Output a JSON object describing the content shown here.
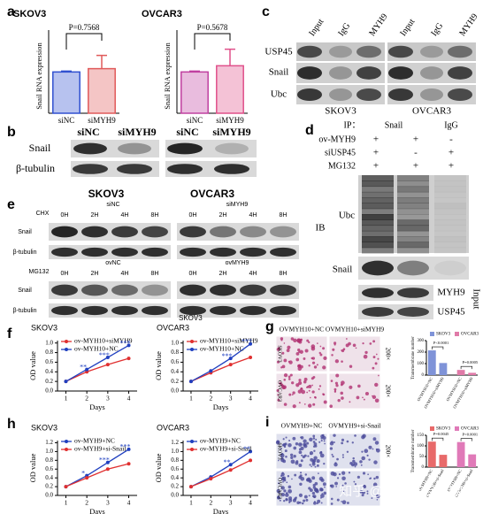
{
  "panels": [
    "a",
    "b",
    "c",
    "d",
    "e",
    "f",
    "g",
    "h",
    "i"
  ],
  "chart_data": [
    {
      "type": "bar",
      "title": "SKOV3",
      "ylabel": "Snail RNA expression",
      "categories": [
        "siNC",
        "siMYH9"
      ],
      "values": [
        1.0,
        1.08
      ],
      "errors": [
        0.02,
        0.32
      ],
      "colors": [
        "#3050d0",
        "#e05a5a"
      ],
      "annotation": "P=0.7568",
      "ylim": [
        0,
        1.8
      ]
    },
    {
      "type": "bar",
      "title": "OVCAR3",
      "ylabel": "Snail RNA expression",
      "categories": [
        "siNC",
        "siMYH9"
      ],
      "values": [
        1.0,
        1.15
      ],
      "errors": [
        0.02,
        0.4
      ],
      "colors": [
        "#c040a0",
        "#e0508a"
      ],
      "annotation": "P=0.5678",
      "ylim": [
        0,
        1.8
      ]
    },
    {
      "type": "line",
      "title": "SKOV3",
      "xlabel": "Days",
      "ylabel": "OD value",
      "x": [
        1,
        2,
        3,
        4
      ],
      "xlim": [
        0.6,
        4.4
      ],
      "xticks": [
        1,
        2,
        3,
        4
      ],
      "ylim": [
        0,
        1.05
      ],
      "yticks": [
        {
          "value": 0,
          "label": "0.0"
        },
        0.2,
        0.4,
        0.6,
        0.8,
        {
          "value": 1,
          "label": "1.0"
        }
      ],
      "series": [
        {
          "name": "ov-MYH10+siMYH9",
          "color": "#e03030",
          "values": [
            0.2,
            0.4,
            0.55,
            0.68
          ]
        },
        {
          "name": "ov-MYH10+NC",
          "color": "#2040c0",
          "values": [
            0.2,
            0.45,
            0.7,
            0.95
          ]
        }
      ],
      "annotations": [
        null,
        "**",
        "***",
        "***"
      ]
    },
    {
      "type": "line",
      "title": "OVCAR3",
      "subtitle": "SKOV3",
      "xlabel": "Days",
      "ylabel": "OD value",
      "x": [
        1,
        2,
        3,
        4
      ],
      "xlim": [
        0.6,
        4.4
      ],
      "xticks": [
        1,
        2,
        3,
        4
      ],
      "ylim": [
        0,
        1.05
      ],
      "yticks": [
        {
          "value": 0,
          "label": "0.0"
        },
        0.2,
        0.4,
        0.6,
        0.8,
        {
          "value": 1,
          "label": "1.0"
        }
      ],
      "series": [
        {
          "name": "ov-MYH10+siMYH9",
          "color": "#e03030",
          "values": [
            0.2,
            0.38,
            0.55,
            0.7
          ]
        },
        {
          "name": "ov-MYH10+NC",
          "color": "#2040c0",
          "values": [
            0.2,
            0.42,
            0.68,
            0.98
          ]
        }
      ],
      "annotations": [
        null,
        null,
        "***",
        "***"
      ]
    },
    {
      "type": "bar_groups",
      "ylabel": "Transmembrane number",
      "categories": [
        "OVMYH10+NC",
        "OVMYH10+siMYH9"
      ],
      "ylim": [
        0,
        300
      ],
      "yticks": [
        0,
        100,
        200,
        300
      ],
      "series": [
        {
          "name": "SKOV3",
          "color": "#7f93d8",
          "values": [
            215,
            105
          ]
        },
        {
          "name": "OVCAR3",
          "color": "#e07aa8",
          "values": [
            45,
            20
          ]
        }
      ],
      "annotations": [
        "P<0.0001",
        "P=0.0005"
      ]
    },
    {
      "type": "line",
      "title": "SKOV3",
      "xlabel": "Days",
      "ylabel": "OD value",
      "x": [
        1,
        2,
        3,
        4
      ],
      "xlim": [
        0.6,
        4.4
      ],
      "xticks": [
        1,
        2,
        3,
        4
      ],
      "ylim": [
        0,
        1.25
      ],
      "yticks": [
        {
          "value": 0,
          "label": "0.0"
        },
        0.2,
        0.4,
        0.6,
        0.8,
        {
          "value": 1,
          "label": "1.0"
        },
        1.2
      ],
      "series": [
        {
          "name": "ov-MYH9+NC",
          "color": "#2040c0",
          "values": [
            0.2,
            0.45,
            0.75,
            1.05
          ]
        },
        {
          "name": "ov-MYH9+si-Snail",
          "color": "#e03030",
          "values": [
            0.2,
            0.4,
            0.6,
            0.72
          ]
        }
      ],
      "annotations": [
        null,
        "*",
        "***",
        "***"
      ]
    },
    {
      "type": "line",
      "title": "OVCAR3",
      "xlabel": "Days",
      "ylabel": "OD value",
      "x": [
        1,
        2,
        3,
        4
      ],
      "xlim": [
        0.6,
        4.4
      ],
      "xticks": [
        1,
        2,
        3,
        4
      ],
      "ylim": [
        0,
        1.25
      ],
      "yticks": [
        {
          "value": 0,
          "label": "0.0"
        },
        0.2,
        0.4,
        0.6,
        0.8,
        {
          "value": 1,
          "label": "1.0"
        },
        1.2
      ],
      "series": [
        {
          "name": "ov-MYH9+NC",
          "color": "#2040c0",
          "values": [
            0.2,
            0.42,
            0.7,
            1.0
          ]
        },
        {
          "name": "ov-MYH9+si-Snail",
          "color": "#e03030",
          "values": [
            0.2,
            0.38,
            0.58,
            0.8
          ]
        }
      ],
      "annotations": [
        null,
        null,
        "**",
        "**"
      ]
    },
    {
      "type": "bar_groups",
      "ylabel": "Transmembrane number",
      "categories": [
        "OVMYH9+NC",
        "OVMYH9+si-Snail"
      ],
      "ylim": [
        0,
        150
      ],
      "yticks": [
        0,
        50,
        100,
        150
      ],
      "series": [
        {
          "name": "SKOV3",
          "color": "#e86a6a",
          "values": [
            120,
            58
          ]
        },
        {
          "name": "OVCAR3",
          "color": "#e07ab8",
          "values": [
            118,
            60
          ]
        }
      ],
      "annotations": [
        "P=0.0045",
        "P=0.0001"
      ]
    }
  ],
  "blot_b": {
    "columns": [
      "siNC",
      "siMYH9",
      "siNC",
      "siMYH9"
    ],
    "rows": [
      "Snail",
      "β-tubulin"
    ]
  },
  "blot_c": {
    "columns": [
      "Input",
      "IgG",
      "MYH9",
      "Input",
      "IgG",
      "MYH9"
    ],
    "rows": [
      "USP45",
      "Snail",
      "Ubc"
    ],
    "cells": [
      "SKOV3",
      "OVCAR3"
    ]
  },
  "blot_d": {
    "ip": "IP：",
    "ip_groups": [
      "Snail",
      "IgG"
    ],
    "conditions": [
      {
        "name": "ov-MYH9",
        "signs": [
          "+",
          "+",
          "-"
        ]
      },
      {
        "name": "siUSP45",
        "signs": [
          "+",
          "-",
          "+"
        ]
      },
      {
        "name": "MG132",
        "signs": [
          "+",
          "+",
          "+"
        ]
      }
    ],
    "ib": "IB",
    "ib_rows": [
      "Ubc",
      "Snail"
    ],
    "input": "Input",
    "input_rows": [
      "MYH9",
      "USP45"
    ]
  },
  "blot_e": {
    "cells": [
      "SKOV3",
      "OVCAR3"
    ],
    "chx": "CHX",
    "chx_groups": [
      "siNC",
      "siMYH9"
    ],
    "mg132": "MG132",
    "mg132_groups": [
      "ovNC",
      "ovMYH9"
    ],
    "times": [
      "0H",
      "2H",
      "4H",
      "8H"
    ],
    "rows": [
      "Snail",
      "β-tubulin"
    ]
  },
  "images_g": {
    "columns": [
      "OVMYH10+NC",
      "OVMYH10+siMYH9"
    ],
    "rows": [
      "SKOV3",
      "OVCAR3"
    ],
    "magnification": "200×"
  },
  "images_i": {
    "columns": [
      "OVMYH9+NC",
      "OVMYH9+si-Snail"
    ],
    "rows": [
      "SKOV3",
      "OVCAR3"
    ],
    "magnification": "200×"
  },
  "watermark": "知乎 @广州基云生物科技"
}
